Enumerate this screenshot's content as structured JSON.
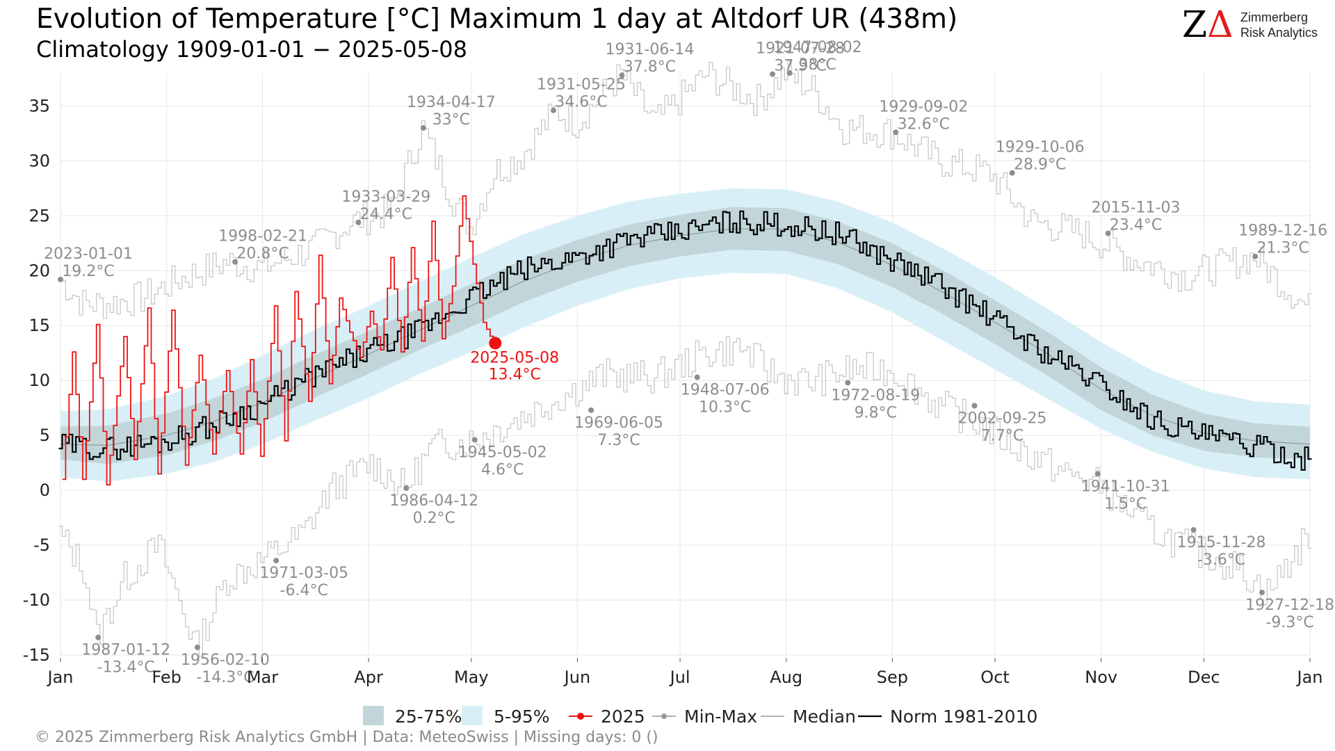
{
  "header": {
    "title": "Evolution of Temperature [°C] Maximum 1 day at Altdorf  UR (438m)",
    "subtitle": "Climatology 1909-01-01 − 2025-05-08"
  },
  "logo": {
    "mark_z": "Z",
    "mark_delta": "Δ",
    "line1": "Zimmerberg",
    "line2": "Risk Analytics"
  },
  "footer": {
    "text": "©  2025 Zimmerberg Risk Analytics GmbH | Data: MeteoSwiss | Missing days: 0 ()"
  },
  "legend": [
    {
      "key": "iqr",
      "label": "25-75%",
      "color": "#c2d6da"
    },
    {
      "key": "p90",
      "label": "5-95%",
      "color": "#d9eff7"
    },
    {
      "key": "current",
      "label": "2025",
      "color": "#ee1111"
    },
    {
      "key": "minmax",
      "label": "Min-Max",
      "color": "#999999"
    },
    {
      "key": "median",
      "label": "Median",
      "color": "#8a9ba0"
    },
    {
      "key": "norm",
      "label": "Norm 1981-2010",
      "color": "#000000"
    }
  ],
  "chart_data": {
    "type": "line",
    "x_unit": "day of year",
    "xlim": [
      1,
      366
    ],
    "ylim": [
      -15,
      38
    ],
    "y_ticks": [
      -15,
      -10,
      -5,
      0,
      5,
      10,
      15,
      20,
      25,
      30,
      35
    ],
    "x_ticks": [
      {
        "label": "Jan",
        "day": 1
      },
      {
        "label": "Feb",
        "day": 32
      },
      {
        "label": "Mar",
        "day": 60
      },
      {
        "label": "Apr",
        "day": 91
      },
      {
        "label": "May",
        "day": 121
      },
      {
        "label": "Jun",
        "day": 152
      },
      {
        "label": "Jul",
        "day": 182
      },
      {
        "label": "Aug",
        "day": 213
      },
      {
        "label": "Sep",
        "day": 244
      },
      {
        "label": "Oct",
        "day": 274
      },
      {
        "label": "Nov",
        "day": 305
      },
      {
        "label": "Dec",
        "day": 335
      },
      {
        "label": "Jan",
        "day": 366
      }
    ],
    "grid": true,
    "legend_position": "bottom",
    "series": [
      {
        "name": "Median",
        "x": [
          1,
          15,
          32,
          46,
          60,
          75,
          91,
          106,
          121,
          136,
          152,
          167,
          182,
          197,
          213,
          228,
          244,
          259,
          274,
          289,
          305,
          320,
          335,
          350,
          366
        ],
        "values": [
          4.2,
          4.1,
          5,
          6.3,
          8,
          10.2,
          12.4,
          14.6,
          16.8,
          19,
          20.9,
          22.3,
          23.2,
          23.8,
          23.8,
          22.6,
          20.5,
          18,
          15.3,
          12.5,
          9.2,
          6.8,
          5.2,
          4.5,
          4.2
        ]
      },
      {
        "name": "Norm 1981-2010",
        "x": [
          1,
          15,
          32,
          46,
          60,
          75,
          91,
          106,
          121,
          136,
          152,
          167,
          182,
          197,
          213,
          228,
          244,
          259,
          274,
          289,
          305,
          320,
          335,
          350,
          366
        ],
        "values": [
          4.1,
          3.8,
          4.5,
          6,
          7.8,
          10.4,
          12.6,
          14.5,
          17.5,
          20,
          21.3,
          22.8,
          23.5,
          24.5,
          24.2,
          23.4,
          21,
          18.6,
          15.6,
          12.5,
          9.7,
          6.5,
          5,
          4,
          2.8
        ]
      },
      {
        "name": "2025",
        "x": [
          2,
          5,
          8,
          12,
          15,
          20,
          23,
          27,
          30,
          34,
          38,
          42,
          46,
          50,
          54,
          57,
          60,
          64,
          67,
          70,
          74,
          77,
          80,
          83,
          86,
          89,
          92,
          95,
          98,
          101,
          104,
          107,
          110,
          113,
          116,
          119,
          122,
          125,
          128
        ],
        "values": [
          1,
          12.6,
          1,
          15.1,
          0.5,
          14,
          2.8,
          16.6,
          1.5,
          16.4,
          2.3,
          12.3,
          3.3,
          10.9,
          3.3,
          11.9,
          3.1,
          16.8,
          4.5,
          18.1,
          8.1,
          21.4,
          9.7,
          17.5,
          14.4,
          12.1,
          16.3,
          12.8,
          21.2,
          12.6,
          22.1,
          13.6,
          24.5,
          13.8,
          18.6,
          26.8,
          20.6,
          15.3,
          13.4
        ]
      }
    ],
    "bands": [
      {
        "name": "25-75%",
        "x": [
          1,
          15,
          32,
          46,
          60,
          75,
          91,
          106,
          121,
          136,
          152,
          167,
          182,
          197,
          213,
          228,
          244,
          259,
          274,
          289,
          305,
          320,
          335,
          350,
          366
        ],
        "lower": [
          2.8,
          2.4,
          3.2,
          4.5,
          6.2,
          8.4,
          10.6,
          12.8,
          14.9,
          17.1,
          19,
          20.4,
          21.3,
          21.9,
          21.8,
          20.6,
          18.5,
          16,
          13.3,
          10.5,
          7.3,
          5,
          3.6,
          3,
          2.8
        ],
        "upper": [
          5.8,
          5.9,
          7,
          8.4,
          10.1,
          12.3,
          14.5,
          16.6,
          18.8,
          21,
          22.8,
          24.2,
          25.1,
          25.8,
          25.7,
          24.5,
          22.5,
          20,
          17.3,
          14.5,
          11.2,
          8.7,
          7,
          6.1,
          5.8
        ]
      },
      {
        "name": "5-95%",
        "x": [
          1,
          15,
          32,
          46,
          60,
          75,
          91,
          106,
          121,
          136,
          152,
          167,
          182,
          197,
          213,
          228,
          244,
          259,
          274,
          289,
          305,
          320,
          335,
          350,
          366
        ],
        "lower": [
          1.2,
          0.8,
          1.5,
          2.6,
          4.2,
          6.3,
          8.4,
          10.6,
          12.6,
          14.8,
          16.8,
          18.3,
          19.3,
          19.8,
          19.7,
          18.4,
          16.2,
          13.6,
          11,
          8.4,
          5.6,
          3.5,
          2,
          1.2,
          1
        ],
        "upper": [
          7.2,
          7.4,
          8.6,
          10.2,
          12.3,
          14.6,
          16.8,
          19,
          21.2,
          23.3,
          25,
          26.3,
          27,
          27.5,
          27.4,
          26.3,
          24.4,
          22,
          19.4,
          16.6,
          13.5,
          10.9,
          9.1,
          8.1,
          7.8
        ]
      },
      {
        "name": "Min-Max max",
        "x": [
          1,
          8,
          15,
          25,
          38,
          50,
          60,
          75,
          86,
          98,
          107,
          116,
          121,
          128,
          136,
          146,
          152,
          165,
          175,
          190,
          205,
          213,
          221,
          230,
          244,
          258,
          273,
          285,
          300,
          315,
          330,
          350,
          366
        ],
        "lower": [],
        "upper": [
          19.2,
          17,
          17,
          17.5,
          19.5,
          20.8,
          20.3,
          22,
          24.4,
          25.5,
          33,
          26.5,
          24,
          29,
          30.5,
          34.6,
          33.5,
          37.8,
          33.5,
          37.9,
          35.5,
          38,
          36.5,
          33,
          32.6,
          30,
          28.9,
          24.5,
          23.4,
          21,
          19.5,
          21.3,
          16.5
        ]
      },
      {
        "name": "Min-Max min",
        "x": [
          1,
          8,
          12,
          20,
          30,
          41,
          50,
          60,
          72,
          80,
          92,
          102,
          110,
          122,
          140,
          160,
          175,
          190,
          200,
          210,
          220,
          232,
          244,
          258,
          270,
          280,
          295,
          305,
          320,
          333,
          345,
          354,
          366
        ],
        "lower": [
          -4,
          -7,
          -13.4,
          -8,
          -5,
          -14.3,
          -8,
          -6.4,
          -4,
          0,
          2.5,
          0.2,
          4,
          4.6,
          7.3,
          10.5,
          10.3,
          12.5,
          13,
          10.5,
          9.8,
          11,
          11,
          7.7,
          6,
          4,
          1.5,
          0.5,
          -3.6,
          -5.5,
          -7,
          -9.3,
          -4
        ],
        "upper": []
      }
    ],
    "annotations": [
      {
        "date": "2023-01-01",
        "value": "19.2°C",
        "day": 1,
        "temp": 19.2
      },
      {
        "date": "1998-02-21",
        "value": "20.8°C",
        "day": 52,
        "temp": 20.8
      },
      {
        "date": "1933-03-29",
        "value": "24.4°C",
        "day": 88,
        "temp": 24.4
      },
      {
        "date": "1934-04-17",
        "value": "33°C",
        "day": 107,
        "temp": 33
      },
      {
        "date": "1931-05-25",
        "value": "34.6°C",
        "day": 145,
        "temp": 34.6
      },
      {
        "date": "1931-06-14",
        "value": "37.8°C",
        "day": 165,
        "temp": 37.8
      },
      {
        "date": "1921-07-28",
        "value": "37.9°C",
        "day": 209,
        "temp": 37.9
      },
      {
        "date": "1947-08-02",
        "value": "38°C",
        "day": 214,
        "temp": 38
      },
      {
        "date": "1929-09-02",
        "value": "32.6°C",
        "day": 245,
        "temp": 32.6
      },
      {
        "date": "1929-10-06",
        "value": "28.9°C",
        "day": 279,
        "temp": 28.9
      },
      {
        "date": "2015-11-03",
        "value": "23.4°C",
        "day": 307,
        "temp": 23.4
      },
      {
        "date": "1989-12-16",
        "value": "21.3°C",
        "day": 350,
        "temp": 21.3
      },
      {
        "date": "1987-01-12",
        "value": "-13.4°C",
        "day": 12,
        "temp": -13.4
      },
      {
        "date": "1956-02-10",
        "value": "-14.3°C",
        "day": 41,
        "temp": -14.3
      },
      {
        "date": "1971-03-05",
        "value": "-6.4°C",
        "day": 64,
        "temp": -6.4
      },
      {
        "date": "1986-04-12",
        "value": "0.2°C",
        "day": 102,
        "temp": 0.2
      },
      {
        "date": "1945-05-02",
        "value": "4.6°C",
        "day": 122,
        "temp": 4.6
      },
      {
        "date": "1969-06-05",
        "value": "7.3°C",
        "day": 156,
        "temp": 7.3
      },
      {
        "date": "1948-07-06",
        "value": "10.3°C",
        "day": 187,
        "temp": 10.3
      },
      {
        "date": "1972-08-19",
        "value": "9.8°C",
        "day": 231,
        "temp": 9.8
      },
      {
        "date": "2002-09-25",
        "value": "7.7°C",
        "day": 268,
        "temp": 7.7
      },
      {
        "date": "1941-10-31",
        "value": "1.5°C",
        "day": 304,
        "temp": 1.5
      },
      {
        "date": "1915-11-28",
        "value": "-3.6°C",
        "day": 332,
        "temp": -3.6
      },
      {
        "date": "1927-12-18",
        "value": "-9.3°C",
        "day": 352,
        "temp": -9.3
      }
    ],
    "current": {
      "date": "2025-05-08",
      "value": "13.4°C",
      "day": 128,
      "temp": 13.4
    }
  }
}
